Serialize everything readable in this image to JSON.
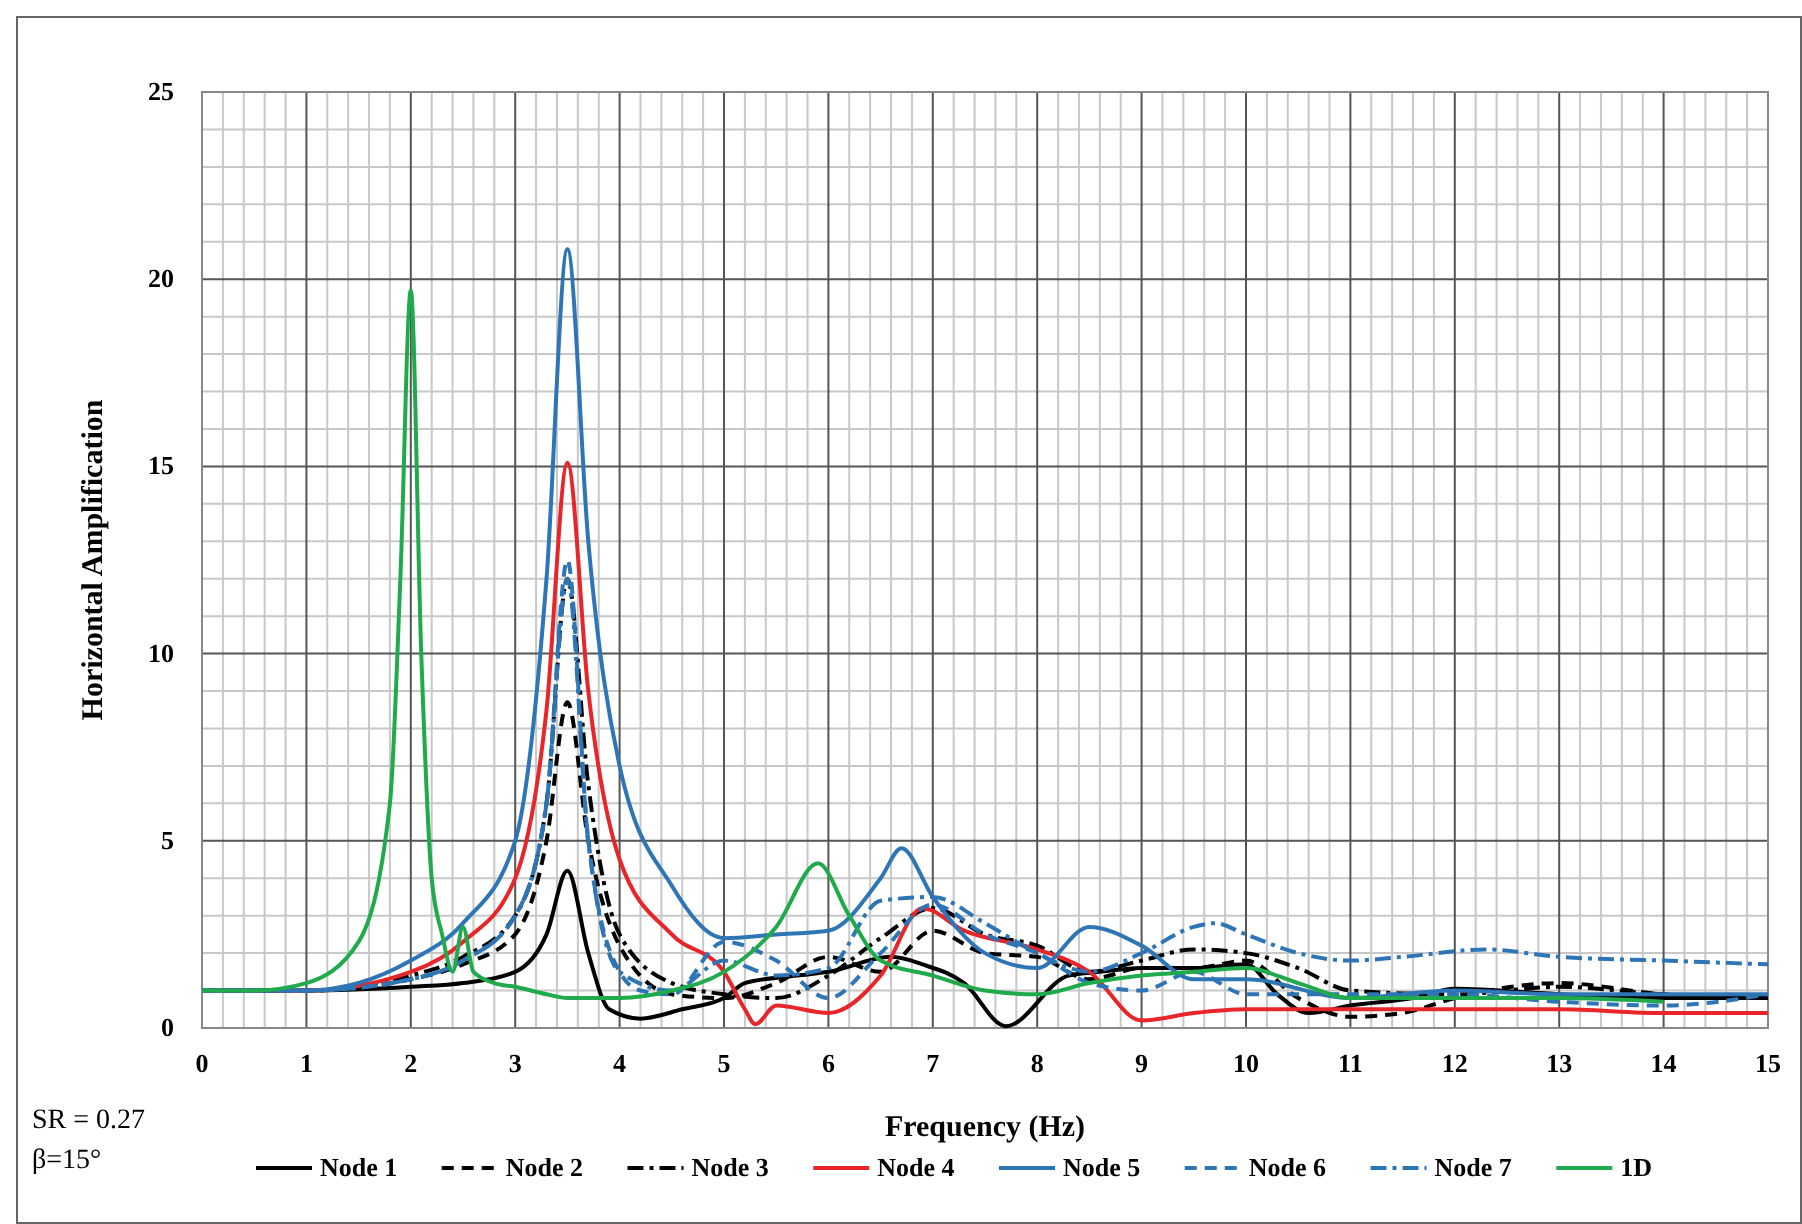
{
  "chart_data": {
    "type": "line",
    "xlabel": "Frequency (Hz)",
    "ylabel": "Horizontal Amplification",
    "xlim": [
      0,
      15
    ],
    "ylim": [
      0,
      25
    ],
    "xticks": [
      0,
      1,
      2,
      3,
      4,
      5,
      6,
      7,
      8,
      9,
      10,
      11,
      12,
      13,
      14,
      15
    ],
    "yticks": [
      0,
      5,
      10,
      15,
      20,
      25
    ],
    "grid": true,
    "legend": "bottom",
    "annotations": [
      "SR = 0.27",
      "β=15°"
    ],
    "series": [
      {
        "name": "Node 1",
        "color": "#000000",
        "line_style": "solid",
        "x": [
          0,
          1,
          2,
          2.5,
          3,
          3.3,
          3.5,
          3.7,
          3.9,
          4.2,
          4.6,
          5,
          5.2,
          5.7,
          6,
          6.6,
          6.9,
          7.3,
          7.7,
          8.3,
          8.6,
          9,
          9.5,
          10,
          10.3,
          10.6,
          11,
          11.6,
          12,
          13,
          14,
          15
        ],
        "values": [
          1,
          1,
          1.1,
          1.2,
          1.5,
          2.5,
          4.2,
          2,
          0.5,
          0.25,
          0.5,
          0.8,
          1.2,
          1.4,
          1.5,
          1.9,
          1.7,
          1.2,
          0.05,
          1.4,
          1.5,
          1.6,
          1.6,
          1.7,
          0.9,
          0.4,
          0.6,
          0.8,
          1.05,
          0.9,
          0.8,
          0.8
        ]
      },
      {
        "name": "Node 2",
        "color": "#000000",
        "line_style": "dashed",
        "x": [
          0,
          1,
          2,
          2.5,
          3,
          3.3,
          3.5,
          3.7,
          4,
          4.5,
          5,
          5.5,
          6,
          6.5,
          7,
          7.5,
          8,
          8.5,
          9,
          9.5,
          10,
          10.5,
          11,
          11.5,
          12,
          13,
          14,
          15
        ],
        "values": [
          1,
          1,
          1.3,
          1.7,
          2.5,
          5,
          8.7,
          5,
          2.2,
          0.9,
          0.8,
          1.2,
          1.9,
          1.5,
          2.6,
          2,
          1.9,
          1.3,
          1.6,
          1.6,
          1.8,
          0.8,
          0.3,
          0.4,
          0.8,
          1.2,
          0.9,
          0.8
        ]
      },
      {
        "name": "Node 3",
        "color": "#000000",
        "line_style": "dashdot",
        "x": [
          0,
          1,
          2,
          2.5,
          3,
          3.3,
          3.5,
          3.7,
          4,
          4.5,
          5,
          5.5,
          6,
          6.5,
          7,
          7.5,
          8,
          8.5,
          9,
          9.5,
          10,
          10.5,
          11,
          12,
          13,
          14,
          15
        ],
        "values": [
          1,
          1,
          1.4,
          1.9,
          3,
          6,
          12,
          6.5,
          2.5,
          1.2,
          0.9,
          0.8,
          1.4,
          2.4,
          3.2,
          2.5,
          2.2,
          1.5,
          1.8,
          2.1,
          2,
          1.6,
          1,
          0.9,
          1.1,
          0.9,
          0.8
        ]
      },
      {
        "name": "Node 4",
        "color": "#e8262a",
        "line_style": "solid",
        "x": [
          0,
          1,
          2,
          2.5,
          3,
          3.3,
          3.5,
          3.7,
          4,
          4.5,
          5,
          5.2,
          5.3,
          5.5,
          6,
          6.5,
          6.9,
          7.3,
          8,
          8.5,
          9,
          9.5,
          10,
          11,
          12,
          13,
          14,
          15
        ],
        "values": [
          1,
          1,
          1.5,
          2.3,
          4,
          8.5,
          15.1,
          9,
          4.5,
          2.5,
          1.5,
          0.5,
          0.1,
          0.6,
          0.4,
          1.4,
          3.2,
          2.6,
          2.1,
          1.5,
          0.2,
          0.4,
          0.5,
          0.5,
          0.5,
          0.5,
          0.4,
          0.4
        ]
      },
      {
        "name": "Node 5",
        "color": "#2e75b6",
        "line_style": "solid",
        "x": [
          0,
          1,
          2,
          2.5,
          3,
          3.3,
          3.5,
          3.7,
          4,
          4.5,
          5,
          5.5,
          6,
          6.5,
          6.7,
          7,
          7.5,
          8,
          8.5,
          9,
          9.5,
          10,
          11,
          12,
          13,
          14,
          15
        ],
        "values": [
          1,
          1,
          1.8,
          2.8,
          5,
          12,
          20.8,
          13,
          7,
          3.8,
          2.4,
          2.5,
          2.6,
          4,
          4.8,
          3.5,
          2,
          1.6,
          2.7,
          2.2,
          1.3,
          1.3,
          0.8,
          1,
          0.9,
          0.9,
          0.9
        ]
      },
      {
        "name": "Node 6",
        "color": "#2e75b6",
        "line_style": "dashed",
        "x": [
          0,
          1,
          2,
          2.5,
          3,
          3.3,
          3.5,
          3.7,
          4,
          4.2,
          4.5,
          5,
          5.5,
          6,
          6.5,
          7,
          7.5,
          8,
          8.5,
          9,
          9.5,
          10,
          11,
          12,
          13,
          14,
          15
        ],
        "values": [
          1,
          1,
          1.3,
          1.8,
          3,
          6,
          12.5,
          5,
          1.5,
          1,
          0.9,
          2.3,
          1.8,
          0.8,
          2,
          3.3,
          2.5,
          2,
          1.2,
          1,
          1.5,
          0.9,
          0.9,
          0.9,
          0.7,
          0.6,
          0.9
        ]
      },
      {
        "name": "Node 7",
        "color": "#2e75b6",
        "line_style": "dashdot",
        "x": [
          0,
          1,
          2,
          2.5,
          3,
          3.3,
          3.5,
          3.7,
          4,
          4.5,
          5,
          5.5,
          6,
          6.5,
          7,
          7.5,
          8,
          8.5,
          9,
          9.5,
          9.7,
          10,
          10.5,
          11,
          11.5,
          12.3,
          13,
          14,
          15
        ],
        "values": [
          1,
          1,
          1.3,
          1.8,
          3,
          6,
          12,
          5,
          1.5,
          1,
          1.8,
          1.4,
          1.6,
          3.4,
          3.5,
          2.8,
          2,
          1.5,
          2,
          2.7,
          2.8,
          2.5,
          2,
          1.8,
          1.9,
          2.1,
          1.9,
          1.8,
          1.7
        ]
      },
      {
        "name": "1D",
        "color": "#1faa4b",
        "line_style": "solid",
        "x": [
          0,
          0.5,
          1,
          1.5,
          1.8,
          1.9,
          2,
          2.1,
          2.2,
          2.3,
          2.4,
          2.5,
          2.6,
          2.8,
          3,
          3.3,
          3.5,
          4,
          4.5,
          5,
          5.5,
          5.9,
          6.2,
          6.5,
          7,
          7.5,
          8,
          8.5,
          9,
          9.5,
          10,
          10.5,
          11,
          12,
          13,
          14
        ],
        "values": [
          1,
          1,
          1.2,
          2.3,
          6,
          12,
          19.7,
          10,
          4,
          2.5,
          1.5,
          2.7,
          1.5,
          1.2,
          1.1,
          0.9,
          0.8,
          0.8,
          1,
          1.5,
          2.7,
          4.4,
          3,
          1.8,
          1.4,
          1,
          0.9,
          1.2,
          1.4,
          1.5,
          1.6,
          1.2,
          0.8,
          0.8,
          0.8,
          0.7
        ]
      }
    ]
  }
}
